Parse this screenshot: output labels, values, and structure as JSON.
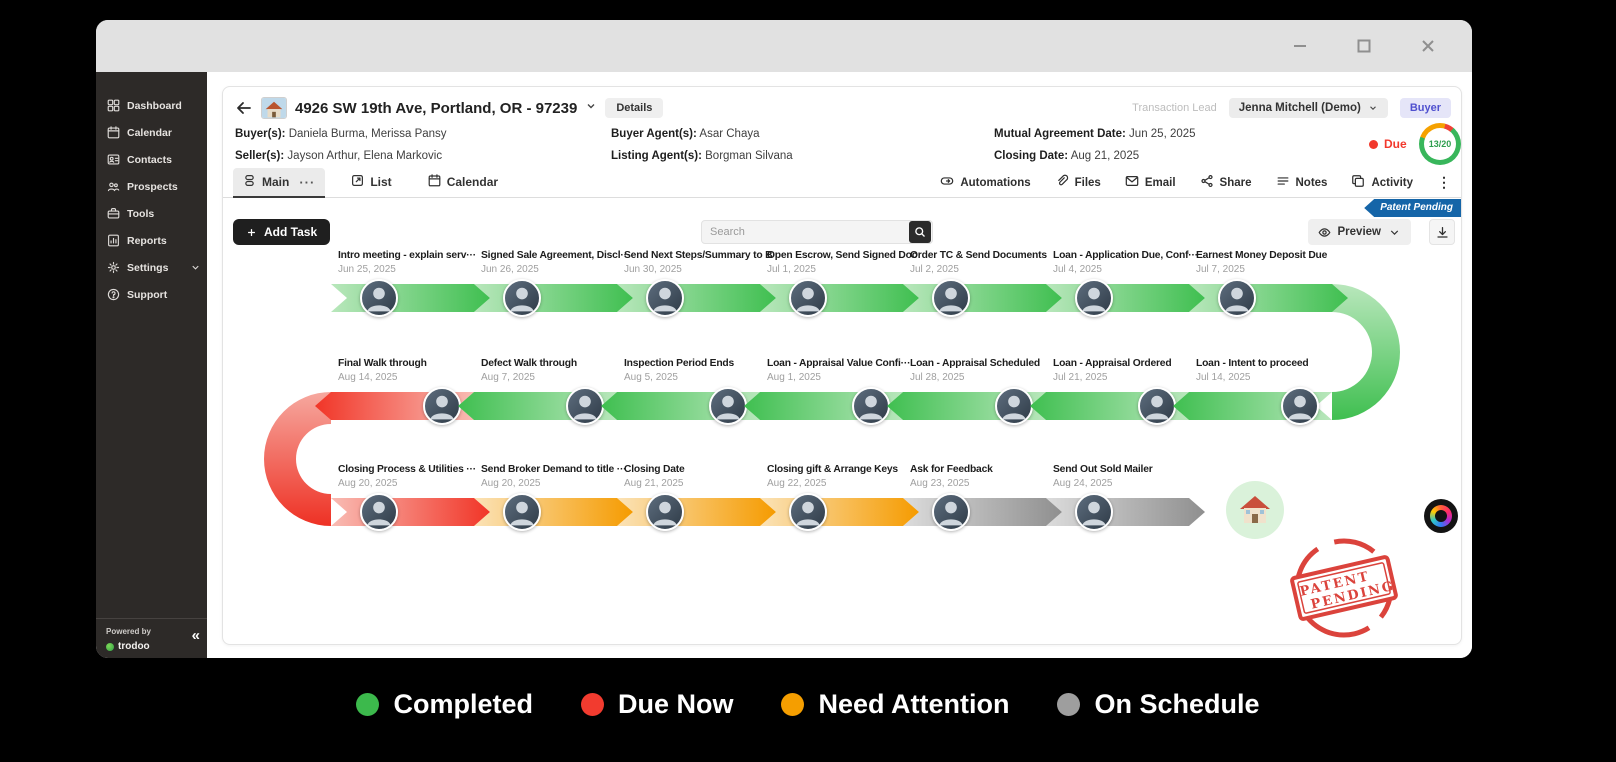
{
  "sidebar": {
    "items": [
      {
        "label": "Dashboard",
        "icon": "dashboard-icon"
      },
      {
        "label": "Calendar",
        "icon": "calendar-icon"
      },
      {
        "label": "Contacts",
        "icon": "contacts-icon"
      },
      {
        "label": "Prospects",
        "icon": "prospects-icon"
      },
      {
        "label": "Tools",
        "icon": "tools-icon"
      },
      {
        "label": "Reports",
        "icon": "reports-icon"
      },
      {
        "label": "Settings",
        "icon": "settings-icon",
        "chevron": true
      },
      {
        "label": "Support",
        "icon": "support-icon"
      }
    ],
    "powered_by": "Powered by",
    "brand": "trodoo",
    "collapse": "«"
  },
  "header": {
    "title": "4926 SW 19th Ave, Portland, OR - 97239",
    "details_label": "Details",
    "transaction_lead_label": "Transaction Lead",
    "transaction_lead_value": "Jenna Mitchell (Demo)",
    "role_badge": "Buyer",
    "buyers_label": "Buyer(s):",
    "buyers": "Daniela Burma, Merissa Pansy",
    "sellers_label": "Seller(s):",
    "sellers": "Jayson Arthur, Elena Markovic",
    "buyer_agents_label": "Buyer Agent(s):",
    "buyer_agents": "Asar Chaya",
    "listing_agents_label": "Listing Agent(s):",
    "listing_agents": "Borgman Silvana",
    "mutual_label": "Mutual Agreement Date:",
    "mutual_value": "Jun 25, 2025",
    "closing_label": "Closing Date:",
    "closing_value": "Aug 21, 2025",
    "due_label": "Due",
    "progress": "13/20"
  },
  "tabs": [
    {
      "label": "Main",
      "icon": "main-tab-icon",
      "active": true,
      "more": "···"
    },
    {
      "label": "List",
      "icon": "list-tab-icon"
    },
    {
      "label": "Calendar",
      "icon": "calendar-tab-icon"
    }
  ],
  "toolbar": [
    {
      "label": "Automations",
      "icon": "automations-icon"
    },
    {
      "label": "Files",
      "icon": "paperclip-icon"
    },
    {
      "label": "Email",
      "icon": "email-icon"
    },
    {
      "label": "Share",
      "icon": "share-icon"
    },
    {
      "label": "Notes",
      "icon": "notes-icon"
    },
    {
      "label": "Activity",
      "icon": "activity-icon"
    }
  ],
  "ribbon": "Patent Pending",
  "actions": {
    "add_task": "Add Task"
  },
  "search": {
    "placeholder": "Search"
  },
  "preview": {
    "label": "Preview"
  },
  "timeline": {
    "rows": [
      {
        "direction": "right",
        "tasks": [
          {
            "title": "Intro meeting - explain serv···",
            "date": "Jun 25, 2025",
            "status": "completed"
          },
          {
            "title": "Signed Sale Agreement, Discl···",
            "date": "Jun 26, 2025",
            "status": "completed"
          },
          {
            "title": "Send Next Steps/Summary to B···",
            "date": "Jun 30, 2025",
            "status": "completed"
          },
          {
            "title": "Open Escrow, Send Signed Doc···",
            "date": "Jul 1, 2025",
            "status": "completed"
          },
          {
            "title": "Order TC & Send Documents",
            "date": "Jul 2, 2025",
            "status": "completed"
          },
          {
            "title": "Loan - Application Due, Conf···",
            "date": "Jul 4, 2025",
            "status": "completed"
          },
          {
            "title": "Earnest Money Deposit Due",
            "date": "Jul 7, 2025",
            "status": "completed"
          }
        ]
      },
      {
        "direction": "left",
        "tasks": [
          {
            "title": "Final Walk through",
            "date": "Aug 14, 2025",
            "status": "due"
          },
          {
            "title": "Defect Walk through",
            "date": "Aug 7, 2025",
            "status": "completed"
          },
          {
            "title": "Inspection Period Ends",
            "date": "Aug 5, 2025",
            "status": "completed"
          },
          {
            "title": "Loan - Appraisal Value Confi···",
            "date": "Aug 1, 2025",
            "status": "completed"
          },
          {
            "title": "Loan - Appraisal Scheduled",
            "date": "Jul 28, 2025",
            "status": "completed"
          },
          {
            "title": "Loan - Appraisal Ordered",
            "date": "Jul 21, 2025",
            "status": "completed"
          },
          {
            "title": "Loan - Intent to proceed",
            "date": "Jul 14, 2025",
            "status": "completed"
          }
        ]
      },
      {
        "direction": "right",
        "tasks": [
          {
            "title": "Closing Process & Utilities ···",
            "date": "Aug 20, 2025",
            "status": "due"
          },
          {
            "title": "Send Broker Demand to title ···",
            "date": "Aug 20, 2025",
            "status": "attention"
          },
          {
            "title": "Closing Date",
            "date": "Aug 21, 2025",
            "status": "attention"
          },
          {
            "title": "Closing gift & Arrange Keys",
            "date": "Aug 22, 2025",
            "status": "attention"
          },
          {
            "title": "Ask for Feedback",
            "date": "Aug 23, 2025",
            "status": "onschedule"
          },
          {
            "title": "Send Out Sold Mailer",
            "date": "Aug 24, 2025",
            "status": "onschedule"
          }
        ]
      }
    ]
  },
  "legend": [
    {
      "label": "Completed",
      "color": "#3cb94c"
    },
    {
      "label": "Due Now",
      "color": "#f23b2f"
    },
    {
      "label": "Need Attention",
      "color": "#f59e00"
    },
    {
      "label": "On Schedule",
      "color": "#9e9e9e"
    }
  ],
  "stamp": {
    "line1": "PATENT",
    "line2": "PENDING"
  },
  "status_colors": {
    "completed": "#3fbf50",
    "due": "#f13527",
    "attention": "#f59b00",
    "onschedule": "#8f8f8f"
  }
}
